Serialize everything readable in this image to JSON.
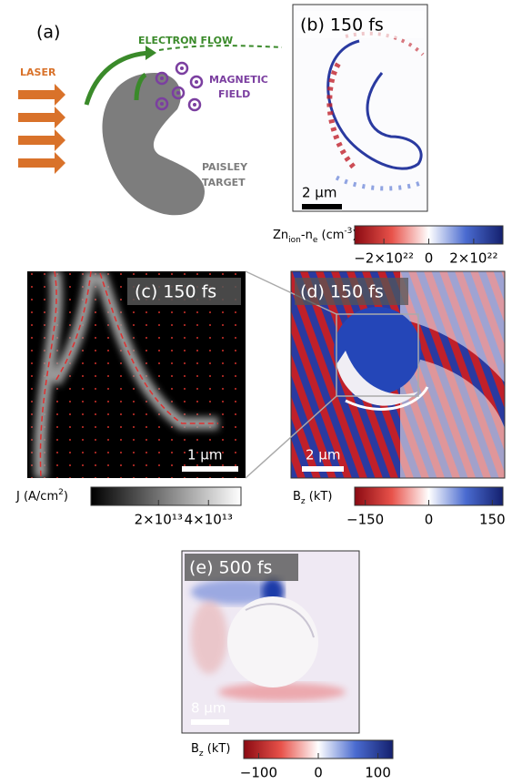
{
  "panel_a": {
    "label": "(a)",
    "laser": "LASER",
    "electron_flow": "ELECTRON FLOW",
    "magnetic_field": [
      "MAGNETIC",
      "FIELD"
    ],
    "target": [
      "PAISLEY",
      "TARGET"
    ]
  },
  "panel_b": {
    "title": "(b) 150 fs",
    "scale_bar": "2 µm",
    "colorbar": {
      "label": [
        {
          "text": "Zn"
        },
        {
          "text": "ion",
          "sub": true
        },
        {
          "text": "-n"
        },
        {
          "text": "e",
          "sub": true
        },
        {
          "text": " (cm"
        },
        {
          "text": "-3",
          "sup": true
        },
        {
          "text": ")"
        }
      ],
      "lim": [
        -3.3e+22,
        3.3e+22
      ],
      "ticks": [
        {
          "value": -2e+22,
          "label": "−2×10²²"
        },
        0,
        {
          "value": 2e+22,
          "label": "2×10²²"
        }
      ]
    }
  },
  "panel_c": {
    "title": "(c) 150 fs",
    "scale_bar": "1 µm",
    "colorbar": {
      "label": [
        {
          "text": "J (A/cm"
        },
        {
          "text": "2",
          "sup": true
        },
        {
          "text": ")"
        }
      ],
      "lim": [
        -7000000000000.0,
        53000000000000.0
      ],
      "ticks": [
        {
          "value": 20000000000000.0,
          "label": "2×10¹³"
        },
        {
          "value": 40000000000000.0,
          "label": "4×10¹³"
        }
      ]
    }
  },
  "panel_d": {
    "title": "(d) 150 fs",
    "scale_bar": "2 µm",
    "colorbar": {
      "label": [
        {
          "text": "B"
        },
        {
          "text": "z",
          "sub": true
        },
        {
          "text": " (kT)"
        }
      ],
      "lim": [
        -175,
        175
      ],
      "ticks": [
        {
          "value": -150,
          "label": "−150"
        },
        0,
        150
      ]
    }
  },
  "panel_e": {
    "title": "(e) 500 fs",
    "scale_bar": "8 µm",
    "colorbar": {
      "label": [
        {
          "text": "B"
        },
        {
          "text": "z",
          "sub": true
        },
        {
          "text": " (kT)"
        }
      ],
      "lim": [
        -125,
        125
      ],
      "ticks": [
        {
          "value": -100,
          "label": "−100"
        },
        0,
        100
      ]
    }
  }
}
